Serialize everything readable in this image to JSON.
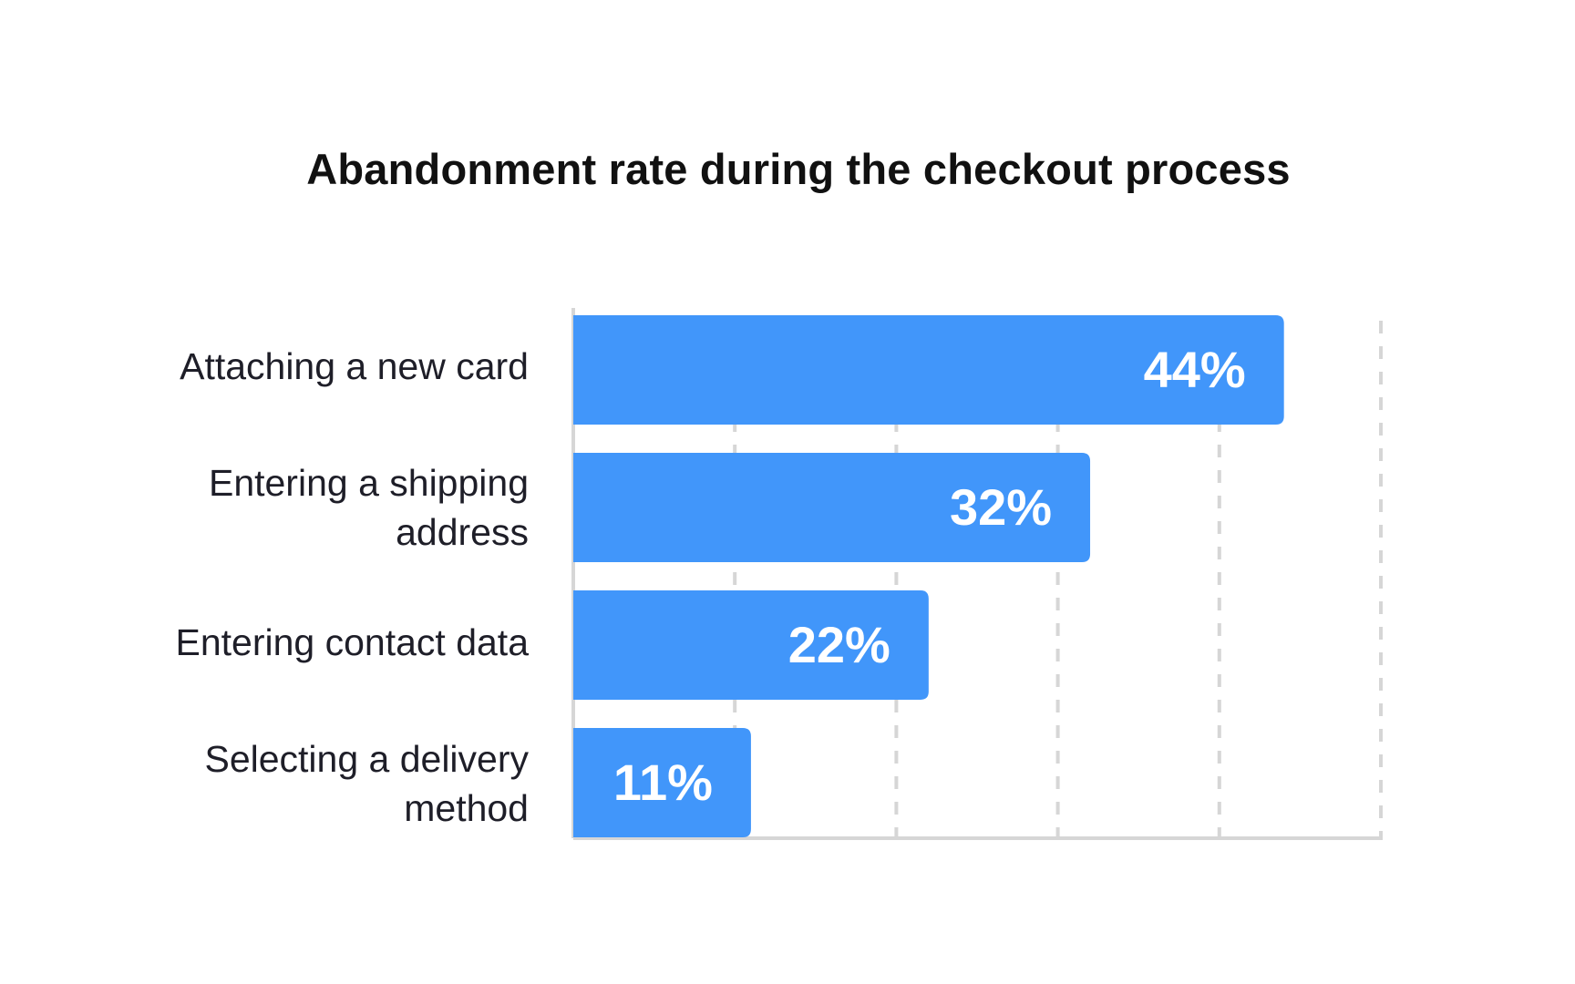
{
  "chart_data": {
    "type": "bar",
    "orientation": "horizontal",
    "title": "Abandonment rate during the checkout process",
    "categories": [
      "Attaching a new card",
      "Entering a shipping address",
      "Entering contact data",
      "Selecting a delivery method"
    ],
    "values": [
      44,
      32,
      22,
      11
    ],
    "value_labels": [
      "44%",
      "32%",
      "22%",
      "11%"
    ],
    "unit": "%",
    "xlim": [
      0,
      50
    ],
    "grid": true,
    "legend": "none",
    "colors": {
      "bar": "#4196FA",
      "bar_label": "#FFFFFF",
      "grid": "#D6D6D6",
      "axis": "#D6D6D6",
      "text": "#1E1E28"
    }
  }
}
